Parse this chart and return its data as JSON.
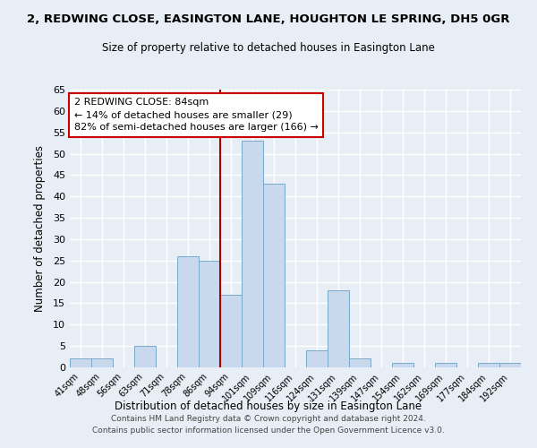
{
  "title": "2, REDWING CLOSE, EASINGTON LANE, HOUGHTON LE SPRING, DH5 0GR",
  "subtitle": "Size of property relative to detached houses in Easington Lane",
  "xlabel": "Distribution of detached houses by size in Easington Lane",
  "ylabel": "Number of detached properties",
  "bar_labels": [
    "41sqm",
    "48sqm",
    "56sqm",
    "63sqm",
    "71sqm",
    "78sqm",
    "86sqm",
    "94sqm",
    "101sqm",
    "109sqm",
    "116sqm",
    "124sqm",
    "131sqm",
    "139sqm",
    "147sqm",
    "154sqm",
    "162sqm",
    "169sqm",
    "177sqm",
    "184sqm",
    "192sqm"
  ],
  "bar_values": [
    2,
    2,
    0,
    5,
    0,
    26,
    25,
    17,
    53,
    43,
    0,
    4,
    18,
    2,
    0,
    1,
    0,
    1,
    0,
    1,
    1
  ],
  "bar_color": "#c8d8ed",
  "bar_edge_color": "#7aaac8",
  "vline_color": "#aa0000",
  "vline_x_pos": 6.5,
  "ylim": [
    0,
    65
  ],
  "yticks": [
    0,
    5,
    10,
    15,
    20,
    25,
    30,
    35,
    40,
    45,
    50,
    55,
    60,
    65
  ],
  "annotation_line1": "2 REDWING CLOSE: 84sqm",
  "annotation_line2": "← 14% of detached houses are smaller (29)",
  "annotation_line3": "82% of semi-detached houses are larger (166) →",
  "annotation_box_color": "#ffffff",
  "annotation_box_edge": "#cc0000",
  "bg_color": "#e8eef5",
  "grid_color": "#ffffff",
  "footer_line1": "Contains HM Land Registry data © Crown copyright and database right 2024.",
  "footer_line2": "Contains public sector information licensed under the Open Government Licence v3.0."
}
